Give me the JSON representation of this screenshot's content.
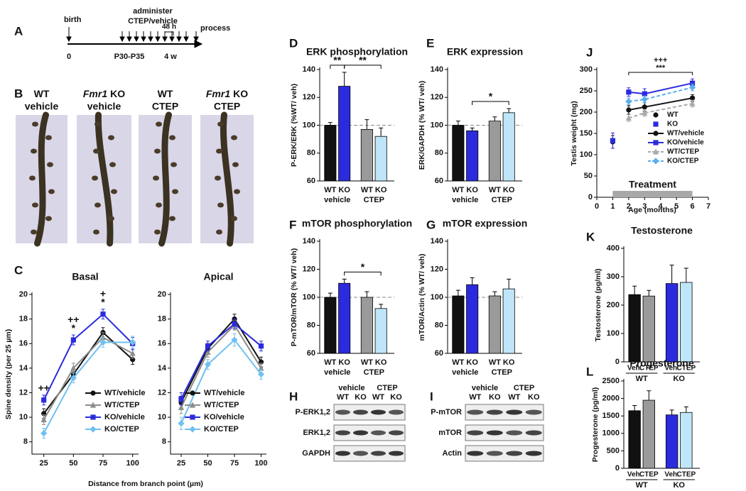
{
  "timeline": {
    "panel": "A",
    "events": [
      "birth",
      "administer",
      "CTEP/vehicle",
      "process"
    ],
    "interval": "48 h",
    "axis_labels": [
      "0",
      "P30-P35",
      "4 w"
    ]
  },
  "images": {
    "panel": "B",
    "columns": [
      {
        "genotype": "WT",
        "treatment": "vehicle"
      },
      {
        "gene": "Fmr1",
        "genotype": "KO",
        "treatment": "vehicle"
      },
      {
        "genotype": "WT",
        "treatment": "CTEP"
      },
      {
        "gene": "Fmr1",
        "genotype": "KO",
        "treatment": "CTEP"
      }
    ]
  },
  "blots": [
    {
      "panel": "H",
      "groups": [
        "vehicle",
        "CTEP"
      ],
      "lanes": [
        "WT",
        "KO",
        "WT",
        "KO"
      ],
      "rows": [
        "P-ERK1,2",
        "ERK1,2",
        "GAPDH"
      ]
    },
    {
      "panel": "I",
      "groups": [
        "vehicle",
        "CTEP"
      ],
      "lanes": [
        "WT",
        "KO",
        "WT",
        "KO"
      ],
      "rows": [
        "P-mTOR",
        "mTOR",
        "Actin"
      ]
    }
  ],
  "chart_data": [
    {
      "type": "line",
      "panel": "C",
      "title": "Basal",
      "ylabel": "Spine density (per 25 µm)",
      "xlabel": "Distance from branch point (µm)",
      "x": [
        25,
        50,
        75,
        100
      ],
      "xlim": [
        15,
        105
      ],
      "xticks": [
        25,
        50,
        75,
        100
      ],
      "ylim": [
        7,
        20
      ],
      "yticks": [
        8,
        10,
        12,
        14,
        16,
        18,
        20
      ],
      "legend": "lower right",
      "series": [
        {
          "name": "WT/vehicle",
          "color": "#111111",
          "marker": "circle",
          "values": [
            10.3,
            13.5,
            16.9,
            14.7
          ],
          "errors": [
            0.4,
            0.4,
            0.4,
            0.4
          ]
        },
        {
          "name": "WT/CTEP",
          "color": "#8c8c8c",
          "marker": "triangle",
          "values": [
            9.8,
            14.0,
            16.5,
            15.2
          ],
          "errors": [
            0.4,
            0.4,
            0.4,
            0.4
          ]
        },
        {
          "name": "KO/vehicle",
          "color": "#2b2bdd",
          "marker": "square",
          "values": [
            11.4,
            16.3,
            18.4,
            16.0
          ],
          "errors": [
            0.4,
            0.4,
            0.4,
            0.5
          ]
        },
        {
          "name": "KO/CTEP",
          "color": "#6fc0f0",
          "marker": "diamond",
          "values": [
            8.7,
            13.2,
            16.1,
            16.1
          ],
          "errors": [
            0.4,
            0.4,
            0.4,
            0.5
          ]
        }
      ],
      "annotations": [
        {
          "x": 25,
          "labels": [
            "++"
          ]
        },
        {
          "x": 50,
          "labels": [
            "++",
            "*"
          ]
        },
        {
          "x": 75,
          "labels": [
            "+",
            "*"
          ]
        }
      ]
    },
    {
      "type": "line",
      "title": "Apical",
      "x": [
        25,
        50,
        75,
        100
      ],
      "xlim": [
        15,
        105
      ],
      "xticks": [
        25,
        50,
        75,
        100
      ],
      "ylim": [
        7,
        20
      ],
      "yticks": [
        8,
        10,
        12,
        14,
        16,
        18,
        20
      ],
      "legend": "lower right",
      "series": [
        {
          "name": "WT/vehicle",
          "color": "#111111",
          "marker": "circle",
          "values": [
            11.2,
            15.6,
            18.0,
            14.5
          ],
          "errors": [
            0.5,
            0.4,
            0.4,
            0.4
          ]
        },
        {
          "name": "WT/CTEP",
          "color": "#8c8c8c",
          "marker": "triangle",
          "values": [
            10.8,
            15.3,
            17.5,
            14.0
          ],
          "errors": [
            0.5,
            0.4,
            0.4,
            0.4
          ]
        },
        {
          "name": "KO/vehicle",
          "color": "#2b2bdd",
          "marker": "square",
          "values": [
            11.5,
            15.8,
            17.6,
            15.8
          ],
          "errors": [
            0.5,
            0.4,
            0.4,
            0.4
          ]
        },
        {
          "name": "KO/CTEP",
          "color": "#6fc0f0",
          "marker": "diamond",
          "values": [
            9.5,
            14.3,
            16.3,
            13.5
          ],
          "errors": [
            0.5,
            0.4,
            0.5,
            0.4
          ]
        }
      ]
    },
    {
      "type": "bar",
      "panel": "D",
      "title": "ERK phosphorylation",
      "ylabel": "P-ERK/ERK (%WT/ veh)",
      "categories": [
        "WT",
        "KO",
        "WT",
        "KO"
      ],
      "groups": [
        "vehicle",
        "CTEP"
      ],
      "values": [
        100,
        128,
        97,
        92
      ],
      "errors": [
        2,
        10,
        7,
        6
      ],
      "colors": [
        "#111111",
        "#2b2bdd",
        "#9a9a9a",
        "#bfe6f8"
      ],
      "ylim": [
        60,
        140
      ],
      "yticks": [
        60,
        80,
        100,
        120,
        140
      ],
      "reference_line": 100,
      "significance": [
        {
          "label": "**",
          "bars": [
            0,
            1
          ]
        },
        {
          "label": "**",
          "bars": [
            1,
            3
          ]
        }
      ]
    },
    {
      "type": "bar",
      "panel": "E",
      "title": "ERK expression",
      "ylabel": "ERK/GAPDH (% WT/ veh)",
      "categories": [
        "WT",
        "KO",
        "WT",
        "KO"
      ],
      "groups": [
        "vehicle",
        "CTEP"
      ],
      "values": [
        100,
        96,
        103,
        109
      ],
      "errors": [
        3,
        2,
        3,
        3
      ],
      "colors": [
        "#111111",
        "#2b2bdd",
        "#9a9a9a",
        "#bfe6f8"
      ],
      "ylim": [
        60,
        140
      ],
      "yticks": [
        60,
        80,
        100,
        120,
        140
      ],
      "reference_line": 100,
      "significance": [
        {
          "label": "*",
          "bars": [
            1,
            3
          ]
        }
      ]
    },
    {
      "type": "bar",
      "panel": "F",
      "title": "mTOR phosphorylation",
      "ylabel": "P-mTOR/mTOR (% WT/ veh)",
      "categories": [
        "WT",
        "KO",
        "WT",
        "KO"
      ],
      "groups": [
        "vehicle",
        "CTEP"
      ],
      "values": [
        100,
        110,
        100,
        92
      ],
      "errors": [
        3,
        3,
        4,
        3
      ],
      "colors": [
        "#111111",
        "#2b2bdd",
        "#9a9a9a",
        "#bfe6f8"
      ],
      "ylim": [
        60,
        140
      ],
      "yticks": [
        60,
        80,
        100,
        120,
        140
      ],
      "reference_line": 100,
      "significance": [
        {
          "label": "*",
          "bars": [
            1,
            3
          ]
        }
      ]
    },
    {
      "type": "bar",
      "panel": "G",
      "title": "mTOR expression",
      "ylabel": "mTOR/Actin (% WT/ veh)",
      "categories": [
        "WT",
        "KO",
        "WT",
        "KO"
      ],
      "groups": [
        "vehicle",
        "CTEP"
      ],
      "values": [
        101,
        109,
        101,
        106
      ],
      "errors": [
        4,
        5,
        3,
        7
      ],
      "colors": [
        "#111111",
        "#2b2bdd",
        "#9a9a9a",
        "#bfe6f8"
      ],
      "ylim": [
        60,
        140
      ],
      "yticks": [
        60,
        80,
        100,
        120,
        140
      ],
      "reference_line": 100
    },
    {
      "type": "line",
      "panel": "J",
      "ylabel": "Testis weight (mg)",
      "xlabel": "Age (months)",
      "xlim": [
        0,
        7
      ],
      "xticks": [
        0,
        1,
        2,
        3,
        4,
        5,
        6,
        7
      ],
      "ylim": [
        0,
        300
      ],
      "yticks": [
        0,
        50,
        100,
        150,
        200,
        250,
        300
      ],
      "legend": "center right",
      "treatment": {
        "label": "Treatment",
        "span": [
          1,
          6
        ]
      },
      "significance": {
        "labels": [
          "+++",
          "***"
        ],
        "span": [
          2,
          6
        ]
      },
      "series": [
        {
          "name": "WT",
          "color": "#111111",
          "marker": "circle",
          "line": false,
          "x": [
            1
          ],
          "values": [
            130
          ],
          "errors": [
            15
          ]
        },
        {
          "name": "KO",
          "color": "#2b2bdd",
          "marker": "square",
          "line": false,
          "x": [
            1
          ],
          "values": [
            133
          ],
          "errors": [
            18
          ]
        },
        {
          "name": "WT/vehicle",
          "color": "#111111",
          "marker": "circle",
          "x": [
            2,
            3,
            6
          ],
          "values": [
            205,
            212,
            233
          ],
          "errors": [
            10,
            10,
            8
          ]
        },
        {
          "name": "KO/vehicle",
          "color": "#2b2bdd",
          "marker": "square",
          "x": [
            2,
            3,
            6
          ],
          "values": [
            247,
            243,
            268
          ],
          "errors": [
            10,
            12,
            10
          ]
        },
        {
          "name": "WT/CTEP",
          "color": "#aaaaaa",
          "marker": "triangle",
          "dash": true,
          "x": [
            2,
            3,
            6
          ],
          "values": [
            186,
            198,
            220
          ],
          "errors": [
            8,
            8,
            8
          ]
        },
        {
          "name": "KO/CTEP",
          "color": "#5aaef0",
          "marker": "diamond",
          "dash": true,
          "x": [
            2,
            3,
            6
          ],
          "values": [
            225,
            230,
            258
          ],
          "errors": [
            8,
            8,
            8
          ]
        }
      ]
    },
    {
      "type": "bar",
      "panel": "K",
      "title": "Testosterone",
      "ylabel": "Testosterone (pg/ml)",
      "categories": [
        "Veh.",
        "CTEP",
        "Veh.",
        "CTEP"
      ],
      "groups": [
        "WT",
        "KO"
      ],
      "values": [
        237,
        232,
        276,
        280
      ],
      "errors": [
        30,
        20,
        65,
        50
      ],
      "colors": [
        "#111111",
        "#9a9a9a",
        "#2b2bdd",
        "#bfe6f8"
      ],
      "ylim": [
        0,
        400
      ],
      "yticks": [
        0,
        100,
        200,
        300,
        400
      ]
    },
    {
      "type": "bar",
      "panel": "L",
      "title": "Progesterone",
      "ylabel": "Progesterone (pg/ml)",
      "categories": [
        "Veh.",
        "CTEP",
        "Veh.",
        "CTEP"
      ],
      "groups": [
        "WT",
        "KO"
      ],
      "values": [
        1650,
        1950,
        1530,
        1600
      ],
      "errors": [
        150,
        270,
        140,
        160
      ],
      "colors": [
        "#111111",
        "#9a9a9a",
        "#2b2bdd",
        "#bfe6f8"
      ],
      "ylim": [
        0,
        2500
      ],
      "yticks": [
        0,
        500,
        1000,
        1500,
        2000,
        2500
      ]
    }
  ]
}
